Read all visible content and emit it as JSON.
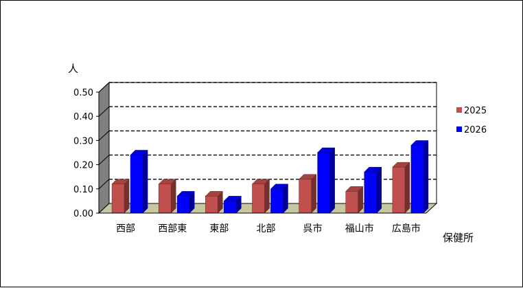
{
  "chart_data": {
    "type": "bar",
    "title": "",
    "ylabel": "人",
    "xlabel": "保健所",
    "categories": [
      "西部",
      "西部東",
      "東部",
      "北部",
      "呉市",
      "福山市",
      "広島市"
    ],
    "series": [
      {
        "name": "2025",
        "values": [
          0.12,
          0.12,
          0.07,
          0.12,
          0.14,
          0.09,
          0.19
        ],
        "color": "#c0504d"
      },
      {
        "name": "2026",
        "values": [
          0.24,
          0.07,
          0.05,
          0.1,
          0.25,
          0.17,
          0.28
        ],
        "color": "#0000ff"
      }
    ],
    "ylim": [
      0,
      0.5
    ],
    "yticks": [
      "0.00",
      "0.10",
      "0.20",
      "0.30",
      "0.40",
      "0.50"
    ],
    "grid": "dashed horizontal",
    "legend_position": "right",
    "style": "3d"
  }
}
